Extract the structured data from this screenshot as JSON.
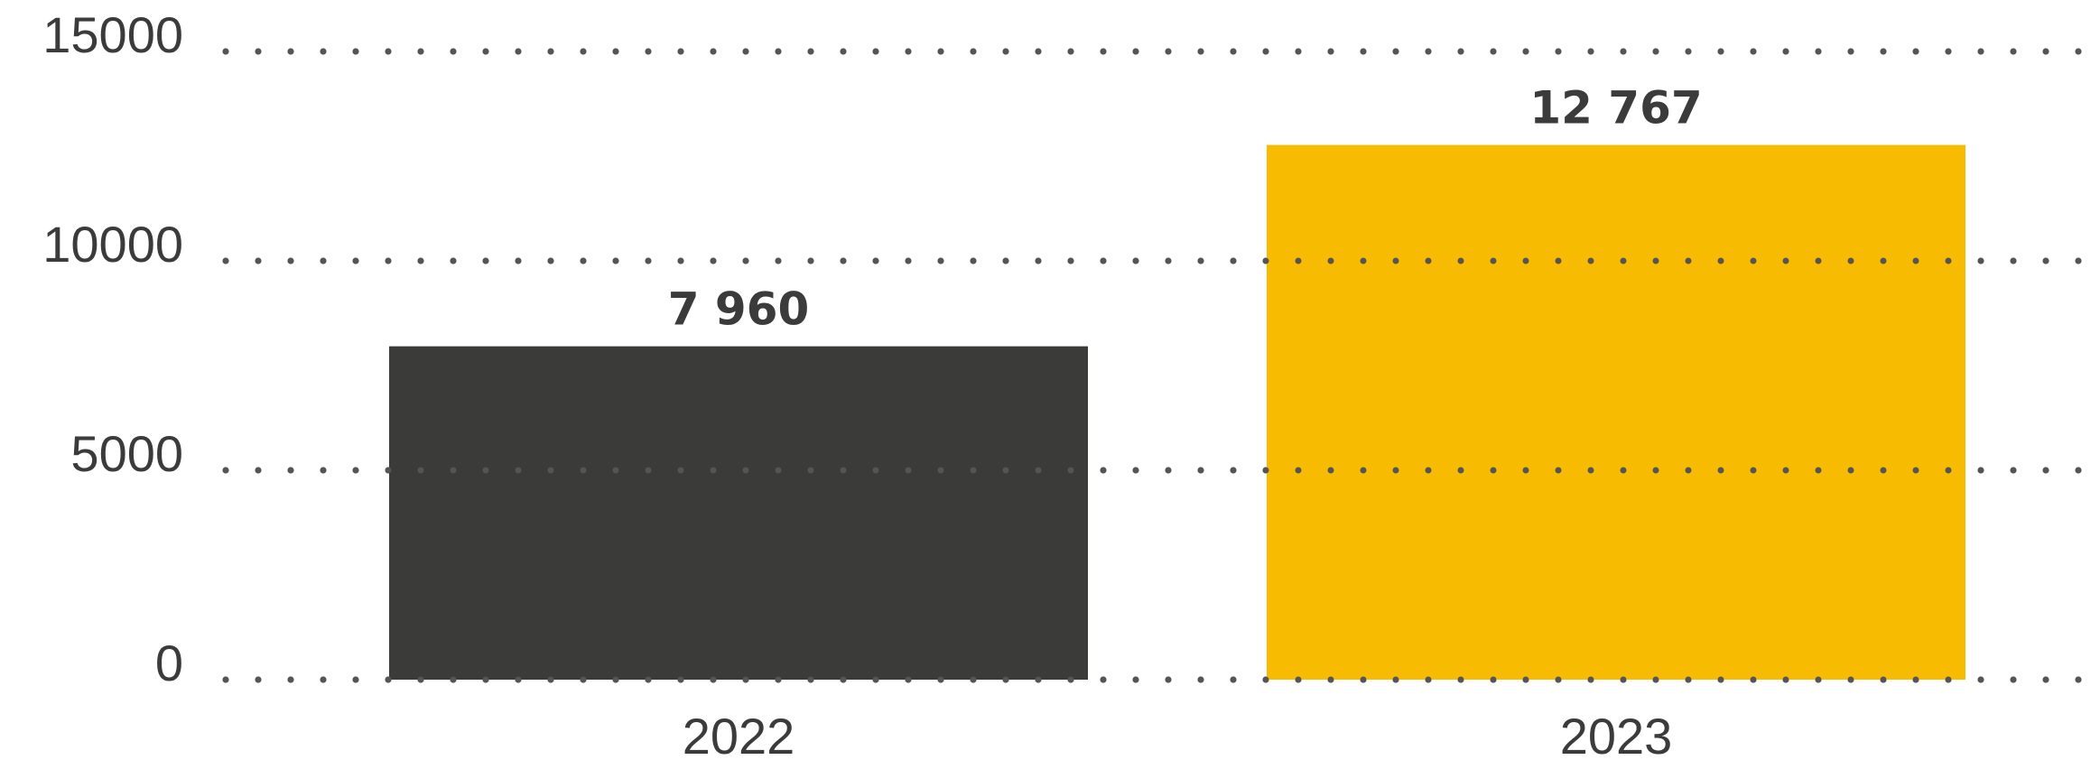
{
  "chart_data": {
    "type": "bar",
    "categories": [
      "2022",
      "2023"
    ],
    "values": [
      7960,
      12767
    ],
    "value_labels": [
      "7 960",
      "12 767"
    ],
    "bar_colors": [
      "#3b3b3a",
      "#f7bb02"
    ],
    "ylim": [
      0,
      15000
    ],
    "yticks": [
      0,
      5000,
      10000,
      15000
    ],
    "ytick_labels": [
      "0",
      "5000",
      "10000",
      "15000"
    ],
    "grid": "dotted",
    "title": "",
    "xlabel": "",
    "ylabel": ""
  }
}
